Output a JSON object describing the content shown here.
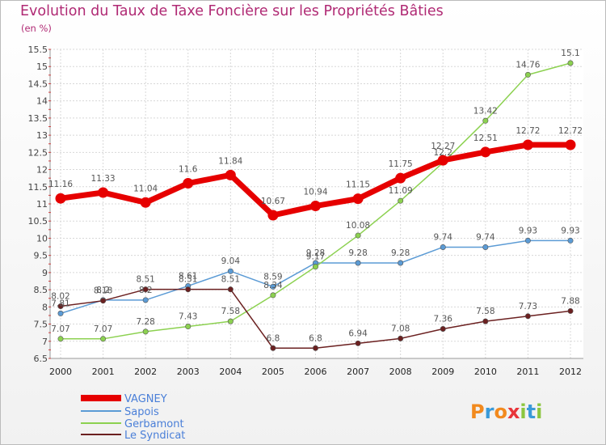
{
  "title": "Evolution du Taux de Taxe Foncière sur les Propriétés Bâties",
  "subtitle": "(en %)",
  "brand": "Proxiti",
  "chart_data": {
    "type": "line",
    "x": [
      "2000",
      "2001",
      "2002",
      "2003",
      "2004",
      "2005",
      "2006",
      "2007",
      "2008",
      "2009",
      "2010",
      "2011",
      "2012"
    ],
    "ylim": [
      6.5,
      15.5
    ],
    "yticks": [
      "6.5",
      "7",
      "7.5",
      "8",
      "8.5",
      "9",
      "9.5",
      "10",
      "10.5",
      "11",
      "11.5",
      "12",
      "12.5",
      "13",
      "13.5",
      "14",
      "14.5",
      "15",
      "15.5"
    ],
    "grid": true,
    "legend_position": "bottom-left",
    "series": [
      {
        "name": "VAGNEY",
        "color": "#e60000",
        "values": [
          11.16,
          11.33,
          11.04,
          11.6,
          11.84,
          10.67,
          10.94,
          11.15,
          11.75,
          12.27,
          12.51,
          12.72,
          12.72
        ],
        "labels": [
          "11.16",
          "11.33",
          "11.04",
          "11.6",
          "11.84",
          "10.67",
          "10.94",
          "11.15",
          "11.75",
          "12.27",
          "12.51",
          "12.72",
          "12.72"
        ]
      },
      {
        "name": "Sapois",
        "color": "#5b9bd5",
        "values": [
          7.81,
          8.2,
          8.2,
          8.61,
          9.04,
          8.59,
          9.28,
          9.28,
          9.28,
          9.74,
          9.74,
          9.93,
          9.93
        ],
        "labels": [
          "7.81",
          "8.2",
          "8.2",
          "8.61",
          "9.04",
          "8.59",
          "9.28",
          "9.28",
          "9.28",
          "9.74",
          "9.74",
          "9.93",
          "9.93"
        ]
      },
      {
        "name": "Gerbamont",
        "color": "#8cd150",
        "values": [
          7.07,
          7.07,
          7.28,
          7.43,
          7.58,
          8.34,
          9.17,
          10.08,
          11.09,
          12.2,
          13.42,
          14.76,
          15.1
        ],
        "labels": [
          "7.07",
          "7.07",
          "7.28",
          "7.43",
          "7.58",
          "8.34",
          "9.17",
          "10.08",
          "11.09",
          "12.2",
          "13.42",
          "14.76",
          "15.1"
        ]
      },
      {
        "name": "Le Syndicat",
        "color": "#6b2020",
        "values": [
          8.02,
          8.18,
          8.51,
          8.51,
          8.51,
          6.8,
          6.8,
          6.94,
          7.08,
          7.36,
          7.58,
          7.73,
          7.88
        ],
        "labels": [
          "8.02",
          "8.18",
          "8.51",
          "8.51",
          "8.51",
          "6.8",
          "6.8",
          "6.94",
          "7.08",
          "7.36",
          "7.58",
          "7.73",
          "7.88"
        ]
      }
    ]
  }
}
